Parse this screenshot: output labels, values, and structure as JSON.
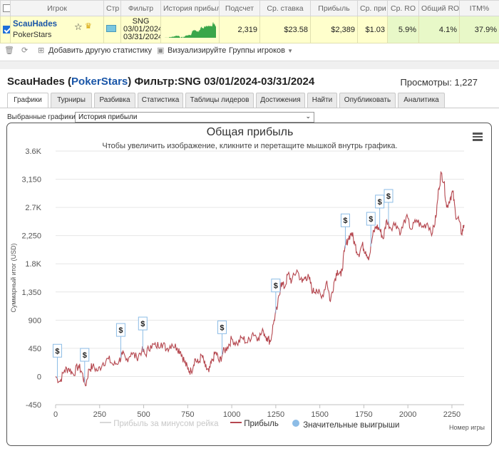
{
  "table": {
    "headers": [
      "",
      "Игрок",
      "Стр",
      "Фильтр",
      "История прибыл",
      "Подсчет",
      "Ср. ставка",
      "Прибыль",
      "Ср. при",
      "Ср. RO",
      "Общий RO",
      "ITM%"
    ],
    "row": {
      "player": "ScauHades",
      "room": "PokerStars",
      "filter_line1": "SNG",
      "filter_line2": "03/01/2024",
      "filter_line3": "03/31/2024",
      "count": "2,319",
      "avg_stake": "$23.58",
      "profit": "$2,389",
      "avg_profit": "$1.03",
      "avg_roi": "5.9%",
      "total_roi": "4.1%",
      "itm": "37.9%"
    }
  },
  "toolbar": {
    "add_stats": "Добавить другую статистику",
    "visualize": "Визуализируйте",
    "groups": "Группы игроков"
  },
  "panel": {
    "player": "ScauHades",
    "room": "PokerStars",
    "filter": "Фильтр:SNG 03/01/2024-03/31/2024",
    "views": "Просмотры: 1,227",
    "tabs": [
      "Графики",
      "Турниры",
      "Разбивка",
      "Статистика",
      "Таблицы лидеров",
      "Достижения",
      "Найти",
      "Опубликовать",
      "Аналитика"
    ],
    "active_tab": 0,
    "selected_label": "Выбранные графики:",
    "selected_value": "История прибыли"
  },
  "chart_data": {
    "type": "line",
    "title": "Общая прибыль",
    "subtitle": "Чтобы увеличить изображение, кликните и перетащите мышкой внутрь графика.",
    "xlabel": "Номер игры",
    "ylabel": "Суммарный итог (USD)",
    "xlim": [
      0,
      2319
    ],
    "ylim": [
      -450,
      3600
    ],
    "x_ticks": [
      0,
      250,
      500,
      750,
      1000,
      1250,
      1500,
      1750,
      2000,
      2250
    ],
    "y_ticks": [
      -450,
      0,
      450,
      900,
      1350,
      1800,
      2250,
      2700,
      3150,
      3600
    ],
    "y_tick_labels": [
      "-450",
      "0",
      "450",
      "900",
      "1,350",
      "1.8K",
      "2,250",
      "2.7K",
      "3,150",
      "3.6K"
    ],
    "series": [
      {
        "name": "Прибыль",
        "color": "#b5474f",
        "points": [
          [
            0,
            0
          ],
          [
            25,
            -80
          ],
          [
            50,
            100
          ],
          [
            75,
            130
          ],
          [
            100,
            40
          ],
          [
            130,
            170
          ],
          [
            150,
            60
          ],
          [
            170,
            -150
          ],
          [
            190,
            120
          ],
          [
            210,
            160
          ],
          [
            240,
            90
          ],
          [
            270,
            220
          ],
          [
            300,
            280
          ],
          [
            330,
            180
          ],
          [
            360,
            250
          ],
          [
            380,
            350
          ],
          [
            400,
            260
          ],
          [
            430,
            380
          ],
          [
            460,
            300
          ],
          [
            490,
            420
          ],
          [
            510,
            350
          ],
          [
            540,
            500
          ],
          [
            570,
            480
          ],
          [
            600,
            540
          ],
          [
            630,
            440
          ],
          [
            660,
            520
          ],
          [
            690,
            460
          ],
          [
            710,
            400
          ],
          [
            730,
            250
          ],
          [
            750,
            120
          ],
          [
            770,
            80
          ],
          [
            790,
            280
          ],
          [
            810,
            210
          ],
          [
            830,
            340
          ],
          [
            850,
            150
          ],
          [
            870,
            70
          ],
          [
            890,
            260
          ],
          [
            910,
            390
          ],
          [
            930,
            230
          ],
          [
            950,
            380
          ],
          [
            975,
            470
          ],
          [
            1000,
            600
          ],
          [
            1030,
            520
          ],
          [
            1060,
            620
          ],
          [
            1090,
            540
          ],
          [
            1120,
            700
          ],
          [
            1150,
            620
          ],
          [
            1180,
            720
          ],
          [
            1200,
            620
          ],
          [
            1220,
            560
          ],
          [
            1240,
            900
          ],
          [
            1260,
            1120
          ],
          [
            1280,
            1500
          ],
          [
            1300,
            1420
          ],
          [
            1320,
            1640
          ],
          [
            1340,
            1520
          ],
          [
            1370,
            1700
          ],
          [
            1400,
            1500
          ],
          [
            1420,
            1600
          ],
          [
            1440,
            1560
          ],
          [
            1460,
            1350
          ],
          [
            1480,
            1400
          ],
          [
            1510,
            1250
          ],
          [
            1540,
            1530
          ],
          [
            1560,
            1200
          ],
          [
            1580,
            1500
          ],
          [
            1600,
            1700
          ],
          [
            1620,
            1600
          ],
          [
            1640,
            2000
          ],
          [
            1660,
            2200
          ],
          [
            1680,
            2300
          ],
          [
            1700,
            2100
          ],
          [
            1720,
            1950
          ],
          [
            1740,
            2100
          ],
          [
            1760,
            2000
          ],
          [
            1780,
            1900
          ],
          [
            1800,
            2250
          ],
          [
            1820,
            2400
          ],
          [
            1840,
            2350
          ],
          [
            1860,
            2200
          ],
          [
            1880,
            2500
          ],
          [
            1900,
            2380
          ],
          [
            1930,
            2450
          ],
          [
            1960,
            2300
          ],
          [
            1990,
            2550
          ],
          [
            2020,
            2350
          ],
          [
            2050,
            2500
          ],
          [
            2080,
            2380
          ],
          [
            2110,
            2450
          ],
          [
            2140,
            2300
          ],
          [
            2160,
            2550
          ],
          [
            2175,
            3000
          ],
          [
            2190,
            3250
          ],
          [
            2205,
            3100
          ],
          [
            2220,
            2700
          ],
          [
            2240,
            2850
          ],
          [
            2255,
            2950
          ],
          [
            2270,
            2600
          ],
          [
            2290,
            2500
          ],
          [
            2305,
            2280
          ],
          [
            2319,
            2420
          ]
        ]
      },
      {
        "name": "Прибыль за минусом рейка",
        "color": "#d8d8d8",
        "points": []
      }
    ],
    "markers": {
      "name": "Значительные выигрыши",
      "color": "#8cbce6",
      "glyph": "$",
      "x": [
        10,
        165,
        370,
        495,
        945,
        1250,
        1645,
        1790,
        1840,
        1890
      ]
    },
    "legend": "bottom-center",
    "grid": "horizontal"
  }
}
